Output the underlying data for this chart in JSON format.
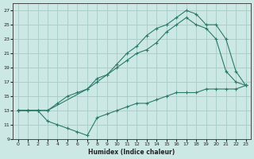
{
  "xlabel": "Humidex (Indice chaleur)",
  "xlim": [
    -0.5,
    23.5
  ],
  "ylim": [
    9,
    28
  ],
  "yticks": [
    9,
    11,
    13,
    15,
    17,
    19,
    21,
    23,
    25,
    27
  ],
  "xticks": [
    0,
    1,
    2,
    3,
    4,
    5,
    6,
    7,
    8,
    9,
    10,
    11,
    12,
    13,
    14,
    15,
    16,
    17,
    18,
    19,
    20,
    21,
    22,
    23
  ],
  "bg_color": "#cce8e4",
  "grid_color": "#aacfca",
  "line_color": "#2a7a6a",
  "line1_x": [
    0,
    1,
    2,
    3,
    4,
    5,
    6,
    7,
    8,
    9,
    10,
    11,
    12,
    13,
    14,
    15,
    16,
    17,
    18,
    19,
    20,
    21,
    22,
    23
  ],
  "line1_y": [
    13,
    13,
    13,
    11.5,
    11,
    10.5,
    10,
    9.5,
    12,
    12.5,
    13,
    13.5,
    14,
    14,
    14.5,
    15,
    15.5,
    15.5,
    15.5,
    16,
    16,
    16,
    16,
    16.5
  ],
  "line2_x": [
    0,
    1,
    2,
    3,
    4,
    5,
    6,
    7,
    8,
    9,
    10,
    11,
    12,
    13,
    14,
    15,
    16,
    17,
    18,
    19,
    20,
    21,
    22,
    23
  ],
  "line2_y": [
    13,
    13,
    13,
    13,
    14,
    15,
    15.5,
    16,
    17,
    18,
    19,
    20,
    21,
    21.5,
    22.5,
    24,
    25,
    26,
    25,
    24.5,
    23,
    18.5,
    17,
    16.5
  ],
  "line3_x": [
    0,
    1,
    2,
    3,
    7,
    8,
    9,
    10,
    11,
    12,
    13,
    14,
    15,
    16,
    17,
    18,
    19,
    20,
    21,
    22,
    23
  ],
  "line3_y": [
    13,
    13,
    13,
    13,
    16,
    17.5,
    18,
    19.5,
    21,
    22,
    23.5,
    24.5,
    25,
    26,
    27,
    26.5,
    25,
    25,
    23,
    18.5,
    16.5
  ]
}
